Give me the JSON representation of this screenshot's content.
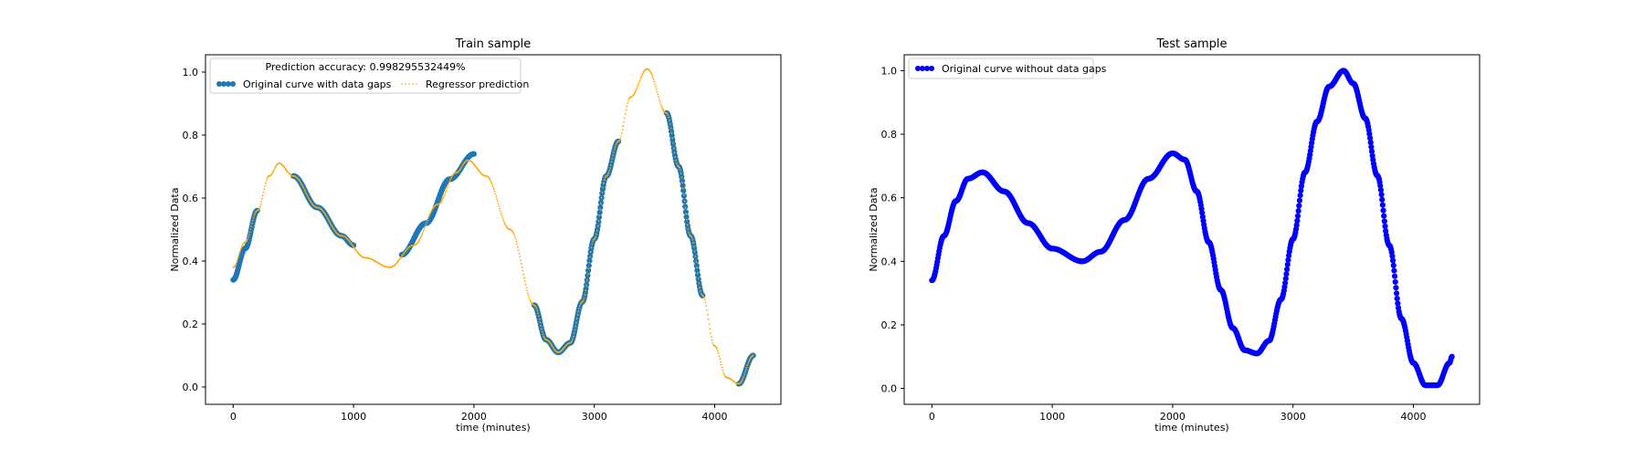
{
  "chart_data": [
    {
      "type": "scatter",
      "title": "Train sample",
      "xlabel": "time (minutes)",
      "ylabel": "Normalized Data",
      "xlim": [
        -230,
        4550
      ],
      "ylim": [
        -0.055,
        1.055
      ],
      "xticks": [
        0,
        1000,
        2000,
        3000,
        4000
      ],
      "yticks": [
        0.0,
        0.2,
        0.4,
        0.6,
        0.8,
        1.0
      ],
      "grid": false,
      "legend": {
        "placement": "top-left",
        "title": "Prediction accuracy: 0.998295532449%",
        "columns": 2
      },
      "series": [
        {
          "name": "Original curve with data gaps",
          "color": "#1f77b4",
          "marker": "circle",
          "x_ranges": [
            [
              0,
              200
            ],
            [
              500,
              1000
            ],
            [
              1400,
              2000
            ],
            [
              2500,
              3200
            ],
            [
              3600,
              3900
            ],
            [
              4200,
              4320
            ]
          ],
          "points": [
            [
              0,
              0.34
            ],
            [
              100,
              0.44
            ],
            [
              200,
              0.56
            ],
            [
              400,
              0.69
            ],
            [
              500,
              0.67
            ],
            [
              700,
              0.57
            ],
            [
              900,
              0.48
            ],
            [
              1000,
              0.45
            ],
            [
              1250,
              0.4
            ],
            [
              1400,
              0.42
            ],
            [
              1600,
              0.52
            ],
            [
              1800,
              0.66
            ],
            [
              2000,
              0.74
            ],
            [
              2200,
              0.63
            ],
            [
              2400,
              0.38
            ],
            [
              2500,
              0.26
            ],
            [
              2600,
              0.15
            ],
            [
              2700,
              0.11
            ],
            [
              2800,
              0.14
            ],
            [
              2900,
              0.27
            ],
            [
              3000,
              0.47
            ],
            [
              3100,
              0.67
            ],
            [
              3200,
              0.78
            ],
            [
              3300,
              0.93
            ],
            [
              3440,
              1.0
            ],
            [
              3600,
              0.87
            ],
            [
              3700,
              0.7
            ],
            [
              3800,
              0.48
            ],
            [
              3900,
              0.29
            ],
            [
              4000,
              0.13
            ],
            [
              4100,
              0.03
            ],
            [
              4200,
              0.01
            ],
            [
              4320,
              0.1
            ]
          ]
        },
        {
          "name": "Regressor prediction",
          "color": "#ffa500",
          "marker": "dot",
          "points": [
            [
              0,
              0.38
            ],
            [
              100,
              0.46
            ],
            [
              200,
              0.56
            ],
            [
              300,
              0.67
            ],
            [
              380,
              0.71
            ],
            [
              500,
              0.67
            ],
            [
              700,
              0.57
            ],
            [
              900,
              0.48
            ],
            [
              1100,
              0.41
            ],
            [
              1300,
              0.38
            ],
            [
              1500,
              0.45
            ],
            [
              1700,
              0.58
            ],
            [
              1850,
              0.68
            ],
            [
              1950,
              0.72
            ],
            [
              2100,
              0.67
            ],
            [
              2300,
              0.5
            ],
            [
              2500,
              0.26
            ],
            [
              2600,
              0.15
            ],
            [
              2700,
              0.11
            ],
            [
              2800,
              0.14
            ],
            [
              2900,
              0.27
            ],
            [
              3000,
              0.47
            ],
            [
              3100,
              0.67
            ],
            [
              3200,
              0.78
            ],
            [
              3300,
              0.92
            ],
            [
              3440,
              1.01
            ],
            [
              3600,
              0.87
            ],
            [
              3700,
              0.7
            ],
            [
              3800,
              0.48
            ],
            [
              3900,
              0.29
            ],
            [
              4000,
              0.13
            ],
            [
              4100,
              0.03
            ],
            [
              4200,
              0.01
            ],
            [
              4320,
              0.1
            ]
          ]
        }
      ]
    },
    {
      "type": "scatter",
      "title": "Test sample",
      "xlabel": "time (minutes)",
      "ylabel": "Normalized Data",
      "xlim": [
        -230,
        4550
      ],
      "ylim": [
        -0.05,
        1.05
      ],
      "xticks": [
        0,
        1000,
        2000,
        3000,
        4000
      ],
      "yticks": [
        0.0,
        0.2,
        0.4,
        0.6,
        0.8,
        1.0
      ],
      "grid": false,
      "legend": {
        "placement": "top-left"
      },
      "series": [
        {
          "name": "Original curve without data gaps",
          "color": "#0000ff",
          "marker": "circle",
          "points": [
            [
              0,
              0.34
            ],
            [
              100,
              0.48
            ],
            [
              200,
              0.59
            ],
            [
              300,
              0.66
            ],
            [
              420,
              0.68
            ],
            [
              600,
              0.62
            ],
            [
              800,
              0.52
            ],
            [
              1000,
              0.44
            ],
            [
              1250,
              0.4
            ],
            [
              1400,
              0.43
            ],
            [
              1600,
              0.53
            ],
            [
              1800,
              0.66
            ],
            [
              2000,
              0.74
            ],
            [
              2100,
              0.72
            ],
            [
              2200,
              0.62
            ],
            [
              2300,
              0.46
            ],
            [
              2400,
              0.31
            ],
            [
              2500,
              0.19
            ],
            [
              2600,
              0.12
            ],
            [
              2700,
              0.11
            ],
            [
              2800,
              0.15
            ],
            [
              2900,
              0.28
            ],
            [
              3000,
              0.47
            ],
            [
              3100,
              0.68
            ],
            [
              3200,
              0.84
            ],
            [
              3300,
              0.95
            ],
            [
              3420,
              1.0
            ],
            [
              3500,
              0.96
            ],
            [
              3600,
              0.85
            ],
            [
              3700,
              0.67
            ],
            [
              3800,
              0.45
            ],
            [
              3900,
              0.22
            ],
            [
              4000,
              0.08
            ],
            [
              4100,
              0.01
            ],
            [
              4200,
              0.01
            ],
            [
              4300,
              0.08
            ],
            [
              4320,
              0.1
            ]
          ]
        }
      ]
    }
  ]
}
